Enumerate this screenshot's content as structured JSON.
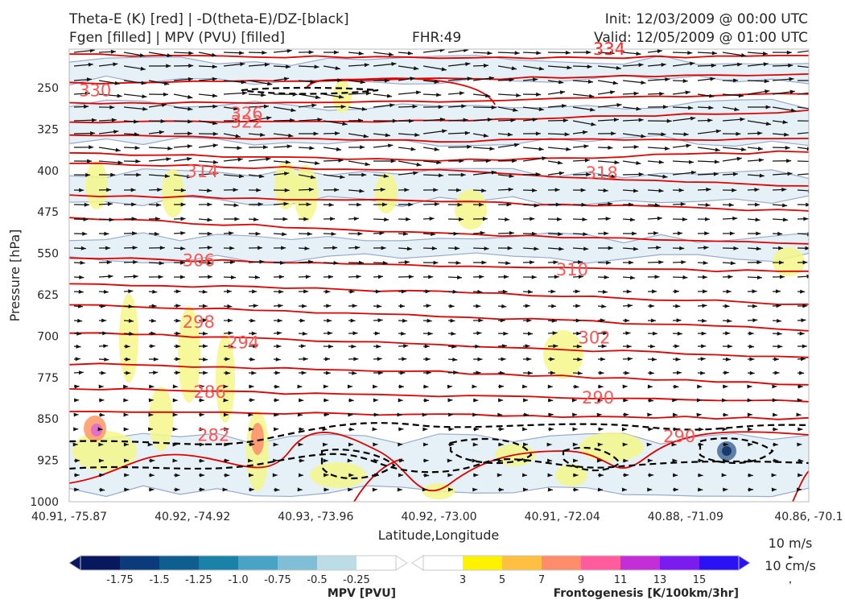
{
  "header": {
    "title_left_1": "Theta-E (K) [red] | -D(theta-E)/DZ-[black]",
    "title_left_2": "Fgen [filled] | MPV (PVU) [filled]",
    "title_center": "FHR:49",
    "title_right_1": "Init: 12/03/2009 @ 00:00 UTC",
    "title_right_2": "Valid: 12/05/2009 @ 01:00 UTC"
  },
  "chart_data": {
    "type": "cross-section",
    "xlabel": "Latitude,Longitude",
    "ylabel": "Pressure [hPa]",
    "x_ticks": [
      "40.91, -75.87",
      "40.92, -74.92",
      "40.93, -73.96",
      "40.92, -73.00",
      "40.91, -72.04",
      "40.88, -71.09",
      "40.86, -70.1"
    ],
    "y_ticks": [
      250,
      325,
      400,
      475,
      550,
      625,
      700,
      775,
      850,
      925,
      1000
    ],
    "ylim": [
      1000,
      180
    ],
    "theta_e_labels": [
      {
        "value": "330",
        "xf": 0.035,
        "p": 265
      },
      {
        "value": "326",
        "xf": 0.24,
        "p": 307
      },
      {
        "value": "322",
        "xf": 0.24,
        "p": 322
      },
      {
        "value": "314",
        "xf": 0.18,
        "p": 412
      },
      {
        "value": "318",
        "xf": 0.72,
        "p": 415
      },
      {
        "value": "306",
        "xf": 0.175,
        "p": 573
      },
      {
        "value": "310",
        "xf": 0.68,
        "p": 590
      },
      {
        "value": "298",
        "xf": 0.175,
        "p": 685
      },
      {
        "value": "302",
        "xf": 0.71,
        "p": 713
      },
      {
        "value": "294",
        "xf": 0.235,
        "p": 722
      },
      {
        "value": "286",
        "xf": 0.19,
        "p": 812
      },
      {
        "value": "290",
        "xf": 0.715,
        "p": 822
      },
      {
        "value": "282",
        "xf": 0.195,
        "p": 890
      },
      {
        "value": "290",
        "xf": 0.825,
        "p": 892
      },
      {
        "value": "334",
        "xf": 0.73,
        "p": 190
      }
    ],
    "mpv_colorbar": {
      "title": "MPV [PVU]",
      "labels": [
        "-1.75",
        "-1.5",
        "-1.25",
        "-1.0",
        "-0.75",
        "-0.5",
        "-0.25"
      ],
      "colors": [
        "#08185e",
        "#0b3b7a",
        "#0e5e90",
        "#1a82a8",
        "#48a3c4",
        "#7fbed6",
        "#bcdce6",
        "#ffffff"
      ]
    },
    "fgen_colorbar": {
      "title": "Frontogenesis [K/100km/3hr]",
      "labels": [
        "3",
        "5",
        "7",
        "9",
        "11",
        "13",
        "15"
      ],
      "colors": [
        "#ffffff",
        "#fff200",
        "#ffbf40",
        "#ff8c6b",
        "#ff5c9e",
        "#c42ed6",
        "#7a1cf0",
        "#2a12f5"
      ]
    },
    "vector_key": {
      "label_1": "10 m/s",
      "label_2": "10 cm/s"
    },
    "colors": {
      "theta_e": "#e00000",
      "theta_label": "#ff5555",
      "dthetadz": "#000000",
      "mpv_contour": "#9aaacc",
      "fgen_fill": "#f4f78a",
      "mpv_fill": "#cfe6ee"
    }
  }
}
